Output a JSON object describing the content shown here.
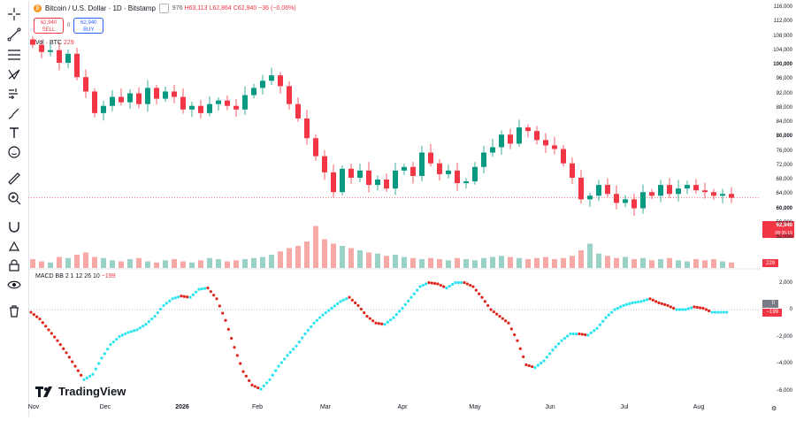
{
  "legend": {
    "symbol": "Bitcoin / U.S. Dollar · 1D · Bitstamp",
    "ohlc_open": "976",
    "ohlc_high": "H63,113",
    "ohlc_low": "L62,864",
    "ohlc_close": "C62,940",
    "ohlc_change": "−36 (−0.06%)"
  },
  "trade": {
    "sell_price": "62,940",
    "sell_label": "SELL",
    "spread": "0",
    "buy_price": "62,940",
    "buy_label": "BUY"
  },
  "volume": {
    "label": "Vol · BTC",
    "value": "229"
  },
  "macd": {
    "label": "MACD BB 2 1 12 26 10",
    "value": "−199"
  },
  "watermark": "TradingView",
  "price_axis": {
    "labels": [
      "116,000",
      "112,000",
      "108,000",
      "104,000",
      "100,000",
      "96,000",
      "92,000",
      "88,000",
      "84,000",
      "80,000",
      "76,000",
      "72,000",
      "68,000",
      "64,000",
      "60,000",
      "56,000",
      "52,000"
    ],
    "current_price": "62,940",
    "countdown": "08:35:15",
    "volume_badge": "229"
  },
  "macd_axis": {
    "labels": [
      "2,000",
      "0",
      "−2,000",
      "−4,000",
      "−6,000"
    ],
    "current_tag": "−199",
    "zero_tag": "0"
  },
  "time_axis": [
    "Nov",
    "Dec",
    "2026",
    "Feb",
    "Mar",
    "Apr",
    "May",
    "Jun",
    "Jul",
    "Aug"
  ],
  "colors": {
    "up": "#089981",
    "down": "#f23645",
    "macd_up": "#26e5f0",
    "macd_down": "#e0241b"
  },
  "chart_data": {
    "type": "candlestick",
    "series_close": [
      105500,
      103500,
      104000,
      100500,
      103000,
      96500,
      92500,
      86500,
      88500,
      91000,
      89500,
      92000,
      89000,
      93500,
      90500,
      92500,
      91000,
      87500,
      88500,
      86500,
      89000,
      90000,
      88500,
      87500,
      91500,
      93500,
      95500,
      97000,
      94000,
      89000,
      85000,
      79500,
      74500,
      70000,
      64500,
      71000,
      68500,
      70500,
      66500,
      68000,
      65500,
      70500,
      71500,
      69000,
      75500,
      72500,
      69500,
      70500,
      67000,
      67500,
      71500,
      75500,
      77000,
      80500,
      78000,
      82500,
      81500,
      79000,
      77500,
      76500,
      72500,
      68500,
      62500,
      63500,
      66500,
      64000,
      61500,
      62500,
      60000,
      64500,
      63500,
      66500,
      64000,
      65500,
      66500,
      65000,
      64500,
      63500,
      64000,
      62940
    ],
    "macd_values": [
      -200,
      -700,
      -1500,
      -2300,
      -3200,
      -4200,
      -5200,
      -4800,
      -3600,
      -2600,
      -2000,
      -1700,
      -1500,
      -1100,
      -500,
      300,
      800,
      1000,
      900,
      1500,
      1600,
      800,
      -800,
      -2800,
      -4600,
      -5600,
      -5900,
      -5200,
      -4200,
      -3400,
      -2700,
      -1800,
      -1000,
      -400,
      100,
      600,
      900,
      300,
      -500,
      -1000,
      -1100,
      -600,
      100,
      900,
      1700,
      2000,
      1900,
      1600,
      2000,
      2000,
      1700,
      900,
      0,
      -500,
      -1000,
      -2300,
      -4100,
      -4300,
      -3800,
      -3000,
      -2300,
      -1800,
      -1800,
      -1900,
      -1400,
      -600,
      0,
      300,
      500,
      600,
      800,
      500,
      300,
      0,
      0,
      200,
      100,
      -200,
      -200,
      -199
    ],
    "volume_values": [
      8,
      6,
      5,
      10,
      9,
      12,
      14,
      10,
      9,
      7,
      6,
      8,
      9,
      6,
      5,
      7,
      8,
      6,
      5,
      7,
      9,
      8,
      6,
      7,
      8,
      9,
      10,
      12,
      15,
      18,
      20,
      24,
      38,
      26,
      22,
      20,
      18,
      16,
      14,
      13,
      11,
      12,
      10,
      9,
      8,
      9,
      8,
      7,
      9,
      8,
      7,
      9,
      10,
      11,
      10,
      9,
      8,
      9,
      10,
      8,
      9,
      11,
      16,
      22,
      13,
      11,
      9,
      10,
      8,
      9,
      7,
      8,
      9,
      7,
      6,
      8,
      7,
      8,
      6,
      5
    ]
  }
}
